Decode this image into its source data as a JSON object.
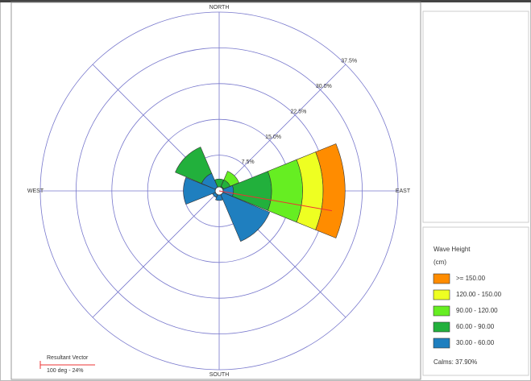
{
  "chart_data": {
    "type": "rose",
    "direction_labels": {
      "north": "NORTH",
      "east": "EAST",
      "south": "SOUTH",
      "west": "WEST"
    },
    "x": [
      0,
      45,
      90,
      135,
      180,
      225,
      270,
      315
    ],
    "rlim": [
      0,
      37.5
    ],
    "rticks": [
      {
        "value": 7.5,
        "label": "7.5%"
      },
      {
        "value": 15,
        "label": "15.0%"
      },
      {
        "value": 22.5,
        "label": "22.5%"
      },
      {
        "value": 30,
        "label": "30.0%"
      },
      {
        "value": 37.5,
        "label": "37.5%"
      }
    ],
    "legend_title": "Wave Height",
    "legend_subtitle": "(cm)",
    "series": [
      {
        "name": ">= 150.00",
        "color": "#ff8c00",
        "values": [
          0,
          0,
          4.6,
          0,
          0,
          0,
          0,
          0
        ]
      },
      {
        "name": "120.00 - 150.00",
        "color": "#eeff22",
        "values": [
          0,
          0,
          4.3,
          0,
          0,
          0,
          0,
          0
        ]
      },
      {
        "name": "90.00 - 120.00",
        "color": "#66ee22",
        "values": [
          0,
          2.0,
          6.5,
          0,
          0,
          0,
          0,
          0
        ]
      },
      {
        "name": "60.00 - 90.00",
        "color": "#22b03c",
        "values": [
          2.0,
          1.5,
          8.0,
          0,
          0,
          0,
          0,
          6.0
        ]
      },
      {
        "name": "30.00 - 60.00",
        "color": "#1f7fbf",
        "values": [
          0.5,
          1.0,
          3.0,
          11.5,
          2.0,
          1.5,
          7.5,
          4.0
        ]
      }
    ],
    "calms": "Calms: 37.90%",
    "resultant": {
      "label": "Resultant Vector",
      "text": "100 deg - 24%",
      "direction": 100,
      "magnitude": 24
    }
  }
}
